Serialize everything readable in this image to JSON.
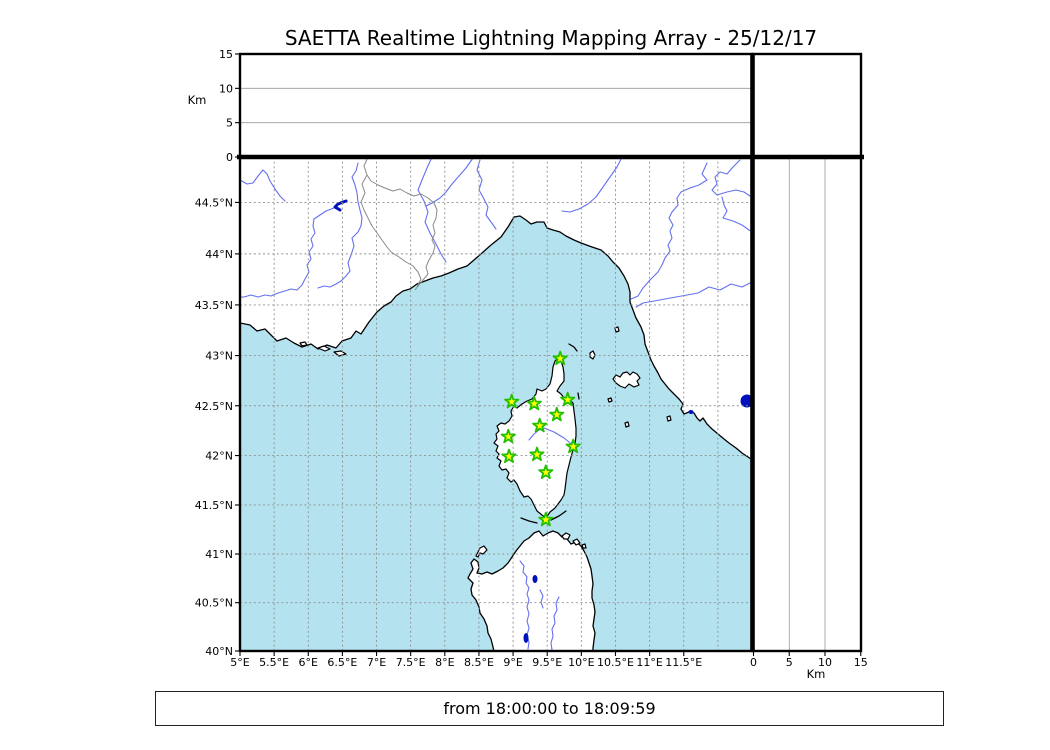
{
  "title": "SAETTA Realtime Lightning Mapping Array - 25/12/17",
  "footer": {
    "text": "from 18:00:00 to 18:09:59"
  },
  "chart_data": {
    "type": "scatter",
    "title": "SAETTA Realtime Lightning Mapping Array - 25/12/17",
    "time_range": "from 18:00:00 to 18:09:59",
    "projection": "mercator",
    "panels": {
      "altitude_vs_longitude": {
        "position": "top",
        "ylabel": "Km",
        "ylim": [
          0,
          15
        ],
        "yticks": [
          0,
          5,
          10,
          15
        ],
        "grid": [
          5,
          10
        ],
        "points": []
      },
      "map": {
        "position": "main",
        "lon_range": [
          5,
          12.5
        ],
        "lat_range": [
          40,
          45
        ],
        "xticks": [
          5,
          5.5,
          6,
          6.5,
          7,
          7.5,
          8,
          8.5,
          9,
          9.5,
          10,
          10.5,
          11,
          11.5
        ],
        "xtick_labels": [
          "5°E",
          "5.5°E",
          "6°E",
          "6.5°E",
          "7°E",
          "7.5°E",
          "8°E",
          "8.5°E",
          "9°E",
          "9.5°E",
          "10°E",
          "10.5°E",
          "11°E",
          "11.5°E"
        ],
        "yticks": [
          40,
          40.5,
          41,
          41.5,
          42,
          42.5,
          43,
          43.5,
          44,
          44.5
        ],
        "ytick_labels": [
          "40°N",
          "40.5°N",
          "41°N",
          "41.5°N",
          "42°N",
          "42.5°N",
          "43°N",
          "43.5°N",
          "44°N",
          "44.5°N"
        ],
        "grid_lon": [
          5.5,
          6,
          6.5,
          7,
          7.5,
          8,
          8.5,
          9,
          9.5,
          10,
          10.5,
          11,
          11.5,
          12
        ],
        "grid_lat": [
          40.5,
          41,
          41.5,
          42,
          42.5,
          43,
          43.5,
          44,
          44.5
        ],
        "lightning_points": []
      },
      "altitude_vs_latitude": {
        "position": "right",
        "xlabel": "Km",
        "xlim": [
          0,
          15
        ],
        "xticks": [
          0,
          5,
          10,
          15
        ],
        "grid": [
          5,
          10
        ],
        "points": []
      }
    },
    "stations": [
      {
        "lon": 9.69,
        "lat": 42.97
      },
      {
        "lon": 8.98,
        "lat": 42.54
      },
      {
        "lon": 9.31,
        "lat": 42.52
      },
      {
        "lon": 9.8,
        "lat": 42.56
      },
      {
        "lon": 9.64,
        "lat": 42.41
      },
      {
        "lon": 9.39,
        "lat": 42.3
      },
      {
        "lon": 8.93,
        "lat": 42.19
      },
      {
        "lon": 9.88,
        "lat": 42.09
      },
      {
        "lon": 8.94,
        "lat": 41.99
      },
      {
        "lon": 9.35,
        "lat": 42.01
      },
      {
        "lon": 9.48,
        "lat": 41.83
      },
      {
        "lon": 9.48,
        "lat": 41.35
      }
    ]
  },
  "colors": {
    "sea": "#b5e2ef",
    "land": "#ffffff",
    "coast": "#000000",
    "river": "#6470f0",
    "border": "#8a8a8a",
    "grid": "#8f8f8f",
    "lake": "#0011bb",
    "station_fill": "#ffff00",
    "station_edge": "#22c000",
    "spine": "#000000"
  }
}
